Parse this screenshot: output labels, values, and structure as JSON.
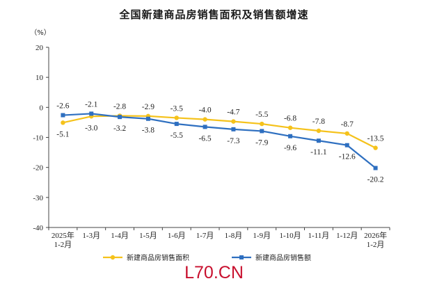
{
  "title": "全国新建商品房销售面积及销售额增速",
  "watermark": "L70.CN",
  "chart_data": {
    "type": "line",
    "unit_label": "（%）",
    "categories": [
      "2025年\n1-2月",
      "1-3月",
      "1-4月",
      "1-5月",
      "1-6月",
      "1-7月",
      "1-8月",
      "1-9月",
      "1-10月",
      "1-11月",
      "1-12月",
      "2026年\n1-2月"
    ],
    "ylim": [
      -40,
      20
    ],
    "yticks": [
      20,
      10,
      0,
      -10,
      -20,
      -30,
      -40
    ],
    "grid": false,
    "legend_position": "bottom",
    "series": [
      {
        "name": "新建商品房销售面积",
        "color": "#f5c21b",
        "marker": "circle",
        "values": [
          -5.1,
          -3.0,
          -2.8,
          -2.9,
          -3.5,
          -4.0,
          -4.7,
          -5.5,
          -6.8,
          -7.8,
          -8.7,
          -13.5
        ],
        "labels": [
          "-5.1",
          "-3.0",
          "-2.8",
          "-2.9",
          "-3.5",
          "-4.0",
          "-4.7",
          "-5.5",
          "-6.8",
          "-7.8",
          "-8.7",
          "-13.5"
        ]
      },
      {
        "name": "新建商品房销售额",
        "color": "#2e6fc0",
        "marker": "square",
        "values": [
          -2.6,
          -2.1,
          -3.2,
          -3.8,
          -5.5,
          -6.5,
          -7.3,
          -7.9,
          -9.6,
          -11.1,
          -12.6,
          -20.2
        ],
        "labels": [
          "-2.6",
          "-2.1",
          "-3.2",
          "-3.8",
          "-5.5",
          "-6.5",
          "-7.3",
          "-7.9",
          "-9.6",
          "-11.1",
          "-12.6",
          "-20.2"
        ]
      }
    ]
  }
}
